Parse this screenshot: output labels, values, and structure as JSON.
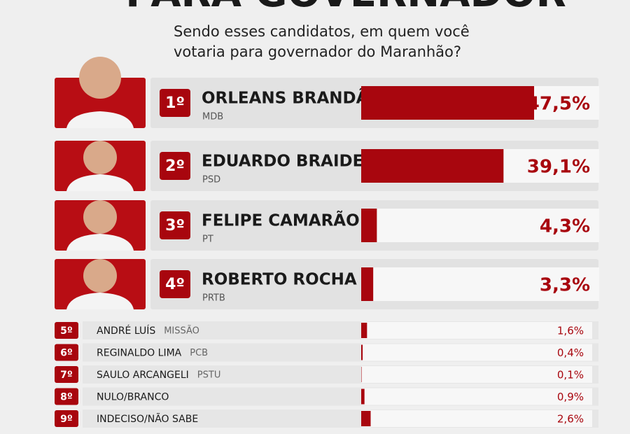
{
  "chart_data": {
    "type": "bar",
    "title": "PARA GOVERNADOR",
    "subtitle": [
      "Sendo esses candidatos, em quem você",
      "votaria para governador do Maranhão?"
    ],
    "ranks": [
      "1º",
      "2º",
      "3º",
      "4º",
      "5º",
      "6º",
      "7º",
      "8º",
      "9º"
    ],
    "categories": [
      "ORLEANS BRANDÃO",
      "EDUARDO BRAIDE",
      "FELIPE CAMARÃO",
      "ROBERTO ROCHA",
      "ANDRÉ LUÍS",
      "REGINALDO LIMA",
      "SAULO ARCANGELI",
      "NULO/BRANCO",
      "INDECISO/NÃO SABE"
    ],
    "parties": [
      "MDB",
      "PSD",
      "PT",
      "PRTB",
      "MISSÃO",
      "PCB",
      "PSTU",
      null,
      null
    ],
    "values": [
      47.5,
      39.1,
      4.3,
      3.3,
      1.6,
      0.4,
      0.1,
      0.9,
      2.6
    ],
    "value_labels": [
      "47,5%",
      "39,1%",
      "4,3%",
      "3,3%",
      "1,6%",
      "0,4%",
      "0,1%",
      "0,9%",
      "2,6%"
    ],
    "color": "#a8060e"
  }
}
